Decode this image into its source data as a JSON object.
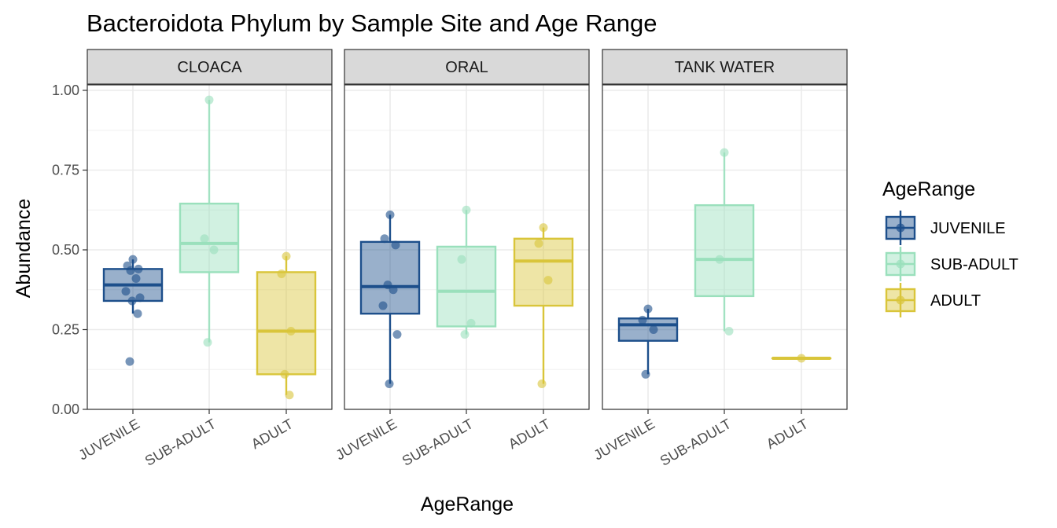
{
  "chart_data": {
    "type": "boxplot",
    "title": "Bacteroidota Phylum by Sample Site and Age Range",
    "xlabel": "AgeRange",
    "ylabel": "Abundance",
    "ylim": [
      0,
      1.05
    ],
    "y_ticks": [
      "0.00",
      "0.25",
      "0.50",
      "0.75",
      "1.00"
    ],
    "categories": [
      "JUVENILE",
      "SUB-ADULT",
      "ADULT"
    ],
    "legend": {
      "title": "AgeRange",
      "position": "right",
      "entries": [
        "JUVENILE",
        "SUB-ADULT",
        "ADULT"
      ]
    },
    "colors": {
      "JUVENILE": "#1d4f8b",
      "SUB-ADULT": "#9ae0bc",
      "ADULT": "#d9c53a"
    },
    "grid": true,
    "facets": [
      {
        "label": "CLOACA",
        "series": [
          {
            "category": "JUVENILE",
            "whisker_low": 0.3,
            "q1": 0.34,
            "median": 0.39,
            "q3": 0.44,
            "whisker_high": 0.47,
            "outliers": [
              0.15
            ],
            "points": [
              0.47,
              0.45,
              0.44,
              0.435,
              0.41,
              0.37,
              0.35,
              0.34,
              0.3,
              0.15
            ]
          },
          {
            "category": "SUB-ADULT",
            "whisker_low": 0.21,
            "q1": 0.43,
            "median": 0.52,
            "q3": 0.645,
            "whisker_high": 0.97,
            "outliers": [],
            "points": [
              0.97,
              0.535,
              0.5,
              0.21
            ]
          },
          {
            "category": "ADULT",
            "whisker_low": 0.045,
            "q1": 0.11,
            "median": 0.245,
            "q3": 0.43,
            "whisker_high": 0.48,
            "outliers": [],
            "points": [
              0.48,
              0.425,
              0.245,
              0.11,
              0.045
            ]
          }
        ]
      },
      {
        "label": "ORAL",
        "series": [
          {
            "category": "JUVENILE",
            "whisker_low": 0.08,
            "q1": 0.3,
            "median": 0.385,
            "q3": 0.525,
            "whisker_high": 0.61,
            "outliers": [],
            "points": [
              0.61,
              0.535,
              0.515,
              0.39,
              0.375,
              0.325,
              0.235,
              0.08
            ]
          },
          {
            "category": "SUB-ADULT",
            "whisker_low": 0.235,
            "q1": 0.26,
            "median": 0.37,
            "q3": 0.51,
            "whisker_high": 0.625,
            "outliers": [],
            "points": [
              0.625,
              0.47,
              0.27,
              0.235
            ]
          },
          {
            "category": "ADULT",
            "whisker_low": 0.08,
            "q1": 0.325,
            "median": 0.465,
            "q3": 0.535,
            "whisker_high": 0.57,
            "outliers": [],
            "points": [
              0.57,
              0.52,
              0.405,
              0.08
            ]
          }
        ]
      },
      {
        "label": "TANK WATER",
        "series": [
          {
            "category": "JUVENILE",
            "whisker_low": 0.11,
            "q1": 0.215,
            "median": 0.265,
            "q3": 0.285,
            "whisker_high": 0.315,
            "outliers": [],
            "points": [
              0.315,
              0.28,
              0.25,
              0.11
            ]
          },
          {
            "category": "SUB-ADULT",
            "whisker_low": 0.245,
            "q1": 0.355,
            "median": 0.47,
            "q3": 0.64,
            "whisker_high": 0.805,
            "outliers": [],
            "points": [
              0.805,
              0.47,
              0.245
            ]
          },
          {
            "category": "ADULT",
            "whisker_low": 0.16,
            "q1": 0.16,
            "median": 0.16,
            "q3": 0.16,
            "whisker_high": 0.16,
            "outliers": [],
            "points": [
              0.16
            ]
          }
        ]
      }
    ]
  }
}
